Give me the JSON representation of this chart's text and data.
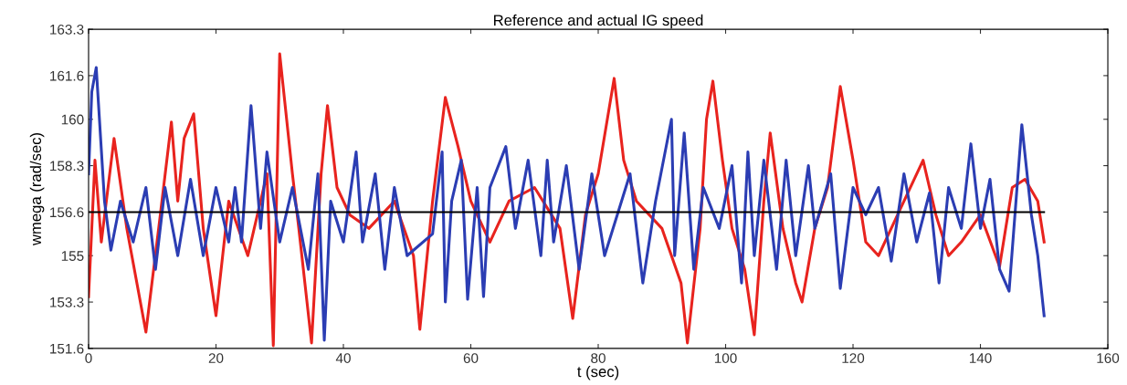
{
  "chart_data": {
    "type": "line",
    "title": "Reference and actual IG speed",
    "xlabel": "t (sec)",
    "ylabel": "wmega (rad/sec)",
    "xlim": [
      0,
      160
    ],
    "xticks": [
      0,
      20,
      40,
      60,
      80,
      100,
      120,
      140,
      160
    ],
    "ylim": [
      151.6,
      163.3
    ],
    "yticks": [
      151.6,
      153.3,
      155,
      156.6,
      158.3,
      160,
      161.6,
      163.3
    ],
    "grid": false,
    "marker": "none",
    "line_style": "solid",
    "series": [
      {
        "color": "#e8231e",
        "x": [
          0,
          1,
          2,
          4,
          6,
          9,
          11,
          13,
          14,
          15,
          16.5,
          18,
          20,
          22,
          25,
          28,
          29,
          30,
          32,
          33,
          35,
          36.5,
          37.5,
          39,
          41,
          44,
          48,
          51,
          52,
          54,
          56,
          58,
          60,
          63,
          66,
          70,
          74,
          76,
          78,
          80,
          82.5,
          84,
          86,
          90,
          93,
          94,
          96,
          97,
          98,
          99.5,
          101,
          103,
          104.5,
          106,
          107,
          109,
          111,
          112,
          114,
          116,
          118,
          120,
          122,
          124,
          127,
          131,
          133,
          135,
          137,
          140,
          143,
          145,
          147,
          149,
          150
        ],
        "values": [
          153.5,
          158.5,
          155.5,
          159.3,
          156,
          152.2,
          156,
          159.9,
          157,
          159.3,
          160.2,
          156,
          152.8,
          157,
          155,
          158,
          151.7,
          162.4,
          158,
          156,
          151.8,
          158,
          160.5,
          157.5,
          156.5,
          156,
          157,
          155,
          152.3,
          157,
          160.8,
          159,
          157,
          155.5,
          157,
          157.5,
          156,
          152.7,
          156.5,
          158,
          161.5,
          158.5,
          157,
          156,
          154,
          151.8,
          156,
          160,
          161.4,
          158.5,
          156,
          154.5,
          152.1,
          157,
          159.5,
          156,
          154,
          153.3,
          156,
          157.5,
          161.2,
          158.5,
          155.5,
          155,
          156.5,
          158.5,
          156.5,
          155,
          155.5,
          156.5,
          154.6,
          157.5,
          157.8,
          157,
          155.5
        ]
      },
      {
        "color": "#2b3db3",
        "x": [
          0,
          0.5,
          1.2,
          2.5,
          3.5,
          5,
          7,
          9,
          10.5,
          12,
          14,
          16,
          18,
          20,
          22,
          23,
          24,
          25.5,
          27,
          28,
          30,
          32,
          34.5,
          36,
          37,
          38,
          40,
          42,
          43,
          45,
          46.5,
          48,
          50,
          54,
          55.5,
          56,
          57,
          58.5,
          59.5,
          61,
          62,
          63,
          65.5,
          67,
          69,
          71,
          72,
          73,
          75,
          77,
          79,
          81,
          85,
          87,
          89,
          91.5,
          92,
          93.5,
          95,
          96.5,
          99,
          101,
          102.5,
          103.5,
          104.5,
          106,
          108,
          109.5,
          111,
          113,
          114,
          116.5,
          118,
          120,
          122,
          124,
          126,
          128,
          130,
          132,
          133.5,
          135,
          137,
          138.5,
          140,
          141.5,
          143,
          144.5,
          146.5,
          148,
          149,
          150
        ],
        "values": [
          158,
          161,
          161.9,
          157,
          155.2,
          157,
          155.5,
          157.5,
          154.5,
          157.5,
          155,
          157.8,
          155,
          157.5,
          155.5,
          157.5,
          155.5,
          160.5,
          156,
          158.8,
          155.5,
          157.5,
          154.5,
          158,
          151.9,
          157,
          155.5,
          158.8,
          155.5,
          158,
          154.5,
          157.5,
          155,
          155.8,
          158.8,
          153.3,
          157,
          158.5,
          153.4,
          157.5,
          153.5,
          157.5,
          159,
          156,
          158.5,
          155,
          158.5,
          155.5,
          158.3,
          154.5,
          158,
          155,
          158,
          154,
          157,
          160,
          155,
          159.5,
          154.5,
          157.5,
          156,
          158.3,
          154,
          158.8,
          155,
          158.5,
          154.5,
          158.5,
          155,
          158.3,
          156,
          158,
          153.8,
          157.5,
          156.5,
          157.5,
          154.8,
          158,
          155.5,
          157.3,
          154,
          157.5,
          156,
          159.1,
          156,
          157.8,
          154.5,
          153.7,
          159.8,
          156.5,
          155,
          152.8
        ]
      },
      {
        "color": "#000000",
        "x": [
          0,
          150
        ],
        "values": [
          156.6,
          156.6
        ]
      }
    ]
  }
}
